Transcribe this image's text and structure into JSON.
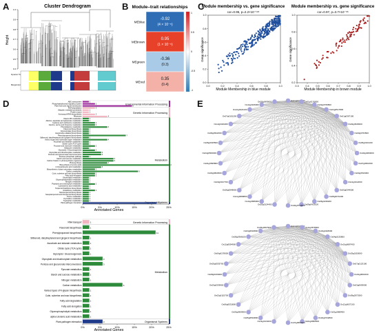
{
  "panels": {
    "A": "A",
    "B": "B",
    "C": "C",
    "D": "D",
    "E": "E"
  },
  "panelA": {
    "title": "Cluster Dendrogram",
    "ylabel": "Height",
    "ticks": [
      "1.0",
      "0.9",
      "0.8",
      "0.7",
      "0.6",
      "0.5",
      "0.4"
    ],
    "row_labels": [
      "Dynamic Tree Cut",
      "Merged dynamic"
    ],
    "module_colors": [
      "#ffff66",
      "#5aaa3c",
      "#1f3a8a",
      "#c43c3c",
      "#62cbd0"
    ]
  },
  "panelB": {
    "title": "Module–trait relationships",
    "modules": [
      {
        "name": "MEblue",
        "value": "-0.92",
        "p": "(4 × 10⁻⁵)",
        "color": "#2f6db5",
        "text_color": "#ffffff"
      },
      {
        "name": "MEbrown",
        "value": "0.95",
        "p": "(1 × 10⁻⁵)",
        "color": "#e8412a",
        "text_color": "#ffffff"
      },
      {
        "name": "MEgreen",
        "value": "-0.36",
        "p": "(0.3)",
        "color": "#a9cbe8",
        "text_color": "#111111"
      },
      {
        "name": "MEred",
        "value": "0.35",
        "p": "(0.4)",
        "color": "#f4b1a8",
        "text_color": "#111111"
      }
    ],
    "scale": [
      "1",
      "0.5",
      "0",
      "-0.5",
      "-1"
    ]
  },
  "panelC": {
    "title": "Module membership vs. gene significance",
    "blue": {
      "stat": "cor=0.95, p=2.2×10⁻¹⁹⁶",
      "xlabel": "Module Membership in blue module",
      "ylabel": "Gene significance",
      "color": "#1f4e9c",
      "xticks": [
        "0.0",
        "0.2",
        "0.4",
        "0.6",
        "0.8",
        "1.0"
      ],
      "yticks": [
        "0.0",
        "0.2",
        "0.4",
        "0.6",
        "0.8",
        "1.0"
      ]
    },
    "brown": {
      "stat": "cor=0.97, p=3.7×10⁻⁶⁶",
      "xlabel": "Module Membership in brown module",
      "ylabel": "Gene significance",
      "color": "#a41e1e",
      "xticks": [
        "0.3",
        "0.4",
        "0.5",
        "0.6",
        "0.7",
        "0.8",
        "0.9",
        "1.0"
      ],
      "yticks": [
        "0.2",
        "0.4",
        "0.6",
        "0.8",
        "1.0"
      ]
    }
  },
  "panelD": {
    "xlabel": "Annotated Genes",
    "top": {
      "xticks": [
        "0%",
        "5%",
        "10%",
        "15%",
        "20%",
        "25%"
      ],
      "groups": [
        {
          "name": "Environmental Information Processing",
          "color": "#9b2a9b"
        },
        {
          "name": "Genetic Information Processing",
          "color": "#f2b6c2"
        },
        {
          "name": "Metabolism",
          "color": "#2e8b3c"
        },
        {
          "name": "Organismal Systems",
          "color": "#1f3a8a"
        }
      ],
      "rows": [
        {
          "label": "ABC transporters",
          "v": 1,
          "g": 0
        },
        {
          "label": "Phosphatidylinositol signaling system",
          "v": 2,
          "g": 0
        },
        {
          "label": "Plant hormone signal transduction",
          "v": 8,
          "g": 0
        },
        {
          "label": "RNA degradation",
          "v": 2,
          "g": 1
        },
        {
          "label": "Ubiquitin mediated proteolysis",
          "v": 1,
          "g": 1
        },
        {
          "label": "Protein export",
          "v": 1,
          "g": 1
        },
        {
          "label": "Aminoacyl-tRNA biosynthesis",
          "v": 2,
          "g": 1
        },
        {
          "label": "Ribosome",
          "v": 4,
          "g": 1
        },
        {
          "label": "Vitamin B6 metabolism",
          "v": 1,
          "g": 2
        },
        {
          "label": "Alanine, aspartate and glutamate metabolism",
          "v": 1,
          "g": 2
        },
        {
          "label": "Cysteine and methionine metabolism",
          "v": 2,
          "g": 2
        },
        {
          "label": "Glycine, serine and threonine metabolism",
          "v": 2,
          "g": 2
        },
        {
          "label": "Phenylalanine metabolism",
          "v": 4,
          "g": 2
        },
        {
          "label": "Flavonoid biosynthesis",
          "v": 1,
          "g": 2
        },
        {
          "label": "Glucosinolate biosynthesis",
          "v": 1,
          "g": 2
        },
        {
          "label": "Isoquinoline alkaloid biosynthesis",
          "v": 1,
          "g": 2
        },
        {
          "label": "Phenylpropanoid biosynthesis",
          "v": 7,
          "g": 2
        },
        {
          "label": "Stilbenoid, diarylheptanoid and gingerol biosynthesis",
          "v": 1,
          "g": 2
        },
        {
          "label": "Amino sugar and nucleotide sugar metabolism",
          "v": 4,
          "g": 2
        },
        {
          "label": "Ascorbate and aldarate metabolism",
          "v": 1,
          "g": 2
        },
        {
          "label": "Citrate cycle (TCA cycle)",
          "v": 1,
          "g": 2
        },
        {
          "label": "Fructose and mannose metabolism",
          "v": 2,
          "g": 2
        },
        {
          "label": "Galactose metabolism",
          "v": 1,
          "g": 2
        },
        {
          "label": "Glycolysis / Gluconeogenesis",
          "v": 2,
          "g": 2
        },
        {
          "label": "Glyoxylate and dicarboxylate metabolism",
          "v": 3,
          "g": 2
        },
        {
          "label": "Pentose and glucuronate interconversions",
          "v": 3,
          "g": 2
        },
        {
          "label": "Pentose phosphate pathway",
          "v": 1,
          "g": 2
        },
        {
          "label": "Starch and sucrose metabolism",
          "v": 5,
          "g": 2
        },
        {
          "label": "Carbon fixation in photosynthetic organisms",
          "v": 5,
          "g": 2
        },
        {
          "label": "Photosynthesis",
          "v": 4,
          "g": 2
        },
        {
          "label": "Biosynthesis of amino acids",
          "v": 14,
          "g": 2
        },
        {
          "label": "2-Oxocarboxylic acid metabolism",
          "v": 3,
          "g": 2
        },
        {
          "label": "Biosynthesis of plant secondary metabolites",
          "v": 2,
          "g": 2
        },
        {
          "label": "Carbon metabolism",
          "v": 9,
          "g": 2
        },
        {
          "label": "Cutin, suberine and wax biosynthesis",
          "v": 2,
          "g": 2
        },
        {
          "label": "Fatty acid elongation",
          "v": 2,
          "g": 2
        },
        {
          "label": "Glycerolipid metabolism",
          "v": 1,
          "g": 2
        },
        {
          "label": "Glycerophospholipid metabolism",
          "v": 1,
          "g": 2
        },
        {
          "label": "Nitrogen metabolism",
          "v": 1,
          "g": 2
        },
        {
          "label": "Porphyrin and chlorophyll metabolism",
          "v": 2,
          "g": 2
        },
        {
          "label": "Cyanoamino acid metabolism",
          "v": 1,
          "g": 2
        },
        {
          "label": "Terpenoid backbone biosynthesis",
          "v": 1,
          "g": 2
        },
        {
          "label": "Glutathione metabolism",
          "v": 2,
          "g": 2
        },
        {
          "label": "Monoterpenoid biosynthesis",
          "v": 1,
          "g": 2
        },
        {
          "label": "Sesquiterpenoid and triterpenoid biosynthesis",
          "v": 1,
          "g": 2
        },
        {
          "label": "Purine metabolism",
          "v": 1,
          "g": 2
        },
        {
          "label": "Pyrimidine metabolism",
          "v": 1,
          "g": 2
        },
        {
          "label": "Tryptophan metabolism",
          "v": 1,
          "g": 2
        },
        {
          "label": "Plant-pathogen interaction",
          "v": 12,
          "g": 3
        }
      ]
    },
    "bottom": {
      "xticks": [
        "0%",
        "5%",
        "10%",
        "15%",
        "20%",
        "25%"
      ],
      "groups": [
        {
          "name": "Genetic Information Processing",
          "color": "#f2b6c2"
        },
        {
          "name": "Metabolism",
          "color": "#2e8b3c"
        },
        {
          "name": "Organismal Systems",
          "color": "#1f3a8a"
        }
      ],
      "rows": [
        {
          "label": "RNA transport",
          "v": 1,
          "g": 0
        },
        {
          "label": "Flavonoid biosynthesis",
          "v": 1,
          "g": 1
        },
        {
          "label": "Phenylpropanoid biosynthesis",
          "v": 11,
          "g": 1
        },
        {
          "label": "Stilbenoid, diarylheptanoid and gingerol biosynthesis",
          "v": 1,
          "g": 1
        },
        {
          "label": "Ascorbate and aldarate metabolism",
          "v": 1,
          "g": 1
        },
        {
          "label": "Citrate cycle (TCA cycle)",
          "v": 1,
          "g": 1
        },
        {
          "label": "Glycolysis / Gluconeogenesis",
          "v": 1,
          "g": 1
        },
        {
          "label": "Glyoxylate and dicarboxylate metabolism",
          "v": 3,
          "g": 1
        },
        {
          "label": "Pentose and glucuronate interconversions",
          "v": 3,
          "g": 1
        },
        {
          "label": "Pyruvate metabolism",
          "v": 1,
          "g": 1
        },
        {
          "label": "Starch and sucrose metabolism",
          "v": 1,
          "g": 1
        },
        {
          "label": "Nitrogen metabolism",
          "v": 1,
          "g": 1
        },
        {
          "label": "Carbon metabolism",
          "v": 6,
          "g": 1
        },
        {
          "label": "Various types of N-glycan biosynthesis",
          "v": 1,
          "g": 1
        },
        {
          "label": "Cutin, suberine and wax biosynthesis",
          "v": 1,
          "g": 1
        },
        {
          "label": "Fatty acid degradation",
          "v": 1,
          "g": 1
        },
        {
          "label": "Fatty acid elongation",
          "v": 1,
          "g": 1
        },
        {
          "label": "Glycerophospholipid metabolism",
          "v": 1,
          "g": 1
        },
        {
          "label": "alpha-Linolenic acid metabolism",
          "v": 1,
          "g": 1
        },
        {
          "label": "Plant-pathogen interaction",
          "v": 3,
          "g": 2
        }
      ]
    }
  },
  "panelE": {
    "node_color": "#a7a6dc",
    "top_nodes": [
      "Os11g0227800",
      "Os01g0176000",
      "Os02g0766800",
      "Os04g0517800",
      "Os01g0367100",
      "Os02g0628200",
      "Os03g0763500",
      "Os05g0101200",
      "Os04g0484600",
      "Os07g0601600",
      "Os04g0516300",
      "Os12g0112000",
      "Os05g0344500",
      "Os08g0151400",
      "Os06g0239200",
      "Os09g0413100",
      "Os02g0713000",
      "Os10g0124400",
      "Os11g0686900",
      "Os11g0689800",
      "Os06g0548600",
      "Os03g0197700",
      "Os03g0820600",
      "Os01g0695800",
      "Os04g0500300",
      "Os06g0195500",
      "Os09g0522000",
      "Os12g0420200",
      "Os07g0151200",
      "Os12g0424100",
      "Os11g0106000",
      "Os03g0699000"
    ],
    "bottom_nodes": [
      "Os11g0227800",
      "Os11g0678000",
      "Os04g0118000",
      "Os04g0135800",
      "Os01g0687400",
      "Os03g0150000",
      "Os07g0123100",
      "Os01g0691600",
      "Os03g0693600",
      "Os09g0370300",
      "Os12g0637100",
      "Os01g0688400",
      "Os02g0722800",
      "Os01g0860500",
      "Os07g0597600",
      "Os11g0116200",
      "Os05g0591800",
      "Os03g0669900",
      "Os06g0531800",
      "Os02g0115700",
      "Os03g0339900",
      "Os08g0169900",
      "Os05g0535700",
      "Os06g0178000",
      "Os12g0554900",
      "Os09g0368100",
      "Os04g0632800",
      "Os03g0367900"
    ]
  }
}
